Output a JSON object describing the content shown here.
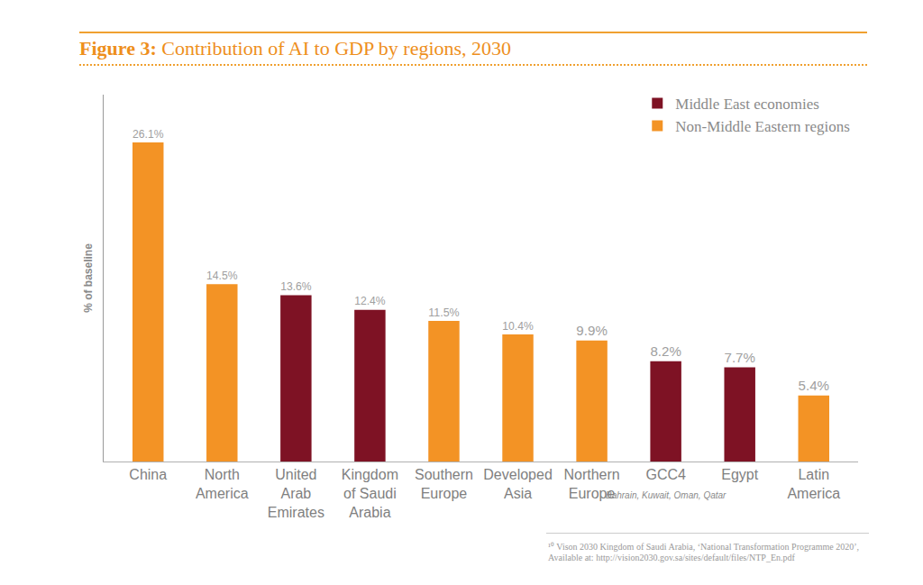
{
  "chart_data": {
    "type": "bar",
    "title": "Figure 3: Contribution of AI to GDP by regions, 2030",
    "ylabel": "% of baseline",
    "categories": [
      "China",
      "North America",
      "United Arab Emirates",
      "Kingdom of Saudi Arabia",
      "Southern Europe",
      "Developed Asia",
      "Northern Europe",
      "GCC4",
      "Egypt",
      "Latin America"
    ],
    "series": [
      {
        "name": "Middle East economies",
        "color": "#7E1224",
        "values": [
          null,
          null,
          13.6,
          12.4,
          null,
          null,
          null,
          8.2,
          7.7,
          null
        ],
        "value_labels": [
          null,
          null,
          "13.6%",
          "12.4%",
          null,
          null,
          null,
          "8.2%",
          "7.7%",
          null
        ]
      },
      {
        "name": "Non-Middle Eastern regions",
        "color": "#F39325",
        "values": [
          26.1,
          14.5,
          null,
          null,
          11.5,
          10.4,
          9.9,
          null,
          null,
          5.4
        ],
        "value_labels": [
          "26.1%",
          "14.5%",
          null,
          null,
          "11.5%",
          "10.4%",
          "9.9%",
          null,
          null,
          "5.4%"
        ]
      }
    ],
    "ylim": [
      0,
      30
    ],
    "yticks": [],
    "grid": false,
    "legend": "top right",
    "data_labels": true,
    "tick_labels": "x",
    "annotations": [
      {
        "text": "Bahrain, Kuwait, Oman, Qatar",
        "category": "GCC4"
      }
    ],
    "source": "¹⁰ Vison 2030 Kingdom of Saudi Arabia, ‘National Transformation Programme 2020’, Available at: http://vision2030.gov.sa/sites/default/files/NTP_En.pdf"
  }
}
